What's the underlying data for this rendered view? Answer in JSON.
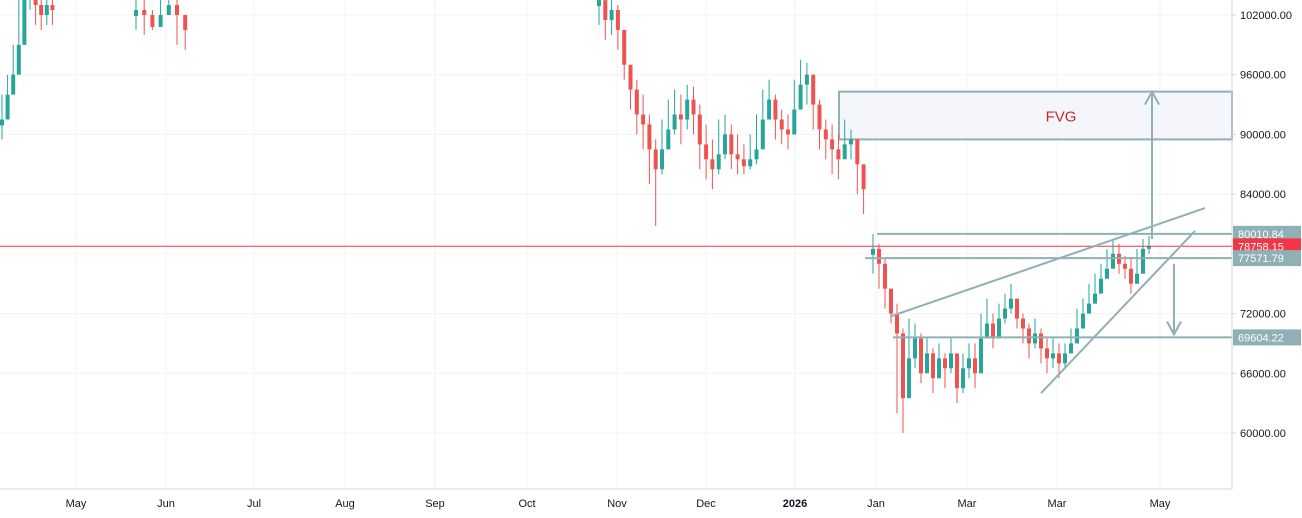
{
  "chart_data": {
    "type": "candlestick",
    "title": "",
    "ylim": [
      55000,
      104500
    ],
    "y_ticks": [
      60000,
      66000,
      72000,
      78000,
      84000,
      90000,
      96000,
      102000
    ],
    "y_tick_labels": [
      "60000.00",
      "66000.00",
      "72000.00",
      "78000.00",
      "84000.00",
      "90000.00",
      "96000.00",
      "102000.00"
    ],
    "x_labels": [
      "May",
      "Jun",
      "Jul",
      "Aug",
      "Sep",
      "Oct",
      "Nov",
      "Dec",
      "2026",
      "Jan",
      "Mar",
      "Mar",
      "May"
    ],
    "x_label_bold": [
      false,
      false,
      false,
      false,
      false,
      false,
      false,
      false,
      true,
      false,
      false,
      false,
      false
    ],
    "current_price": 78758.15,
    "current_price_label": "78758.15",
    "levels": [
      {
        "value": 80010.84,
        "label": "80010.84"
      },
      {
        "value": 77571.79,
        "label": "77571.79"
      },
      {
        "value": 69604.22,
        "label": "69604.22"
      }
    ],
    "fvg": {
      "label": "FVG",
      "top": 94300,
      "bottom": 89500
    },
    "colors": {
      "up": "#26a69a",
      "down": "#ef5350",
      "price_line": "#f23645",
      "drawing": "#8fb0b4",
      "fvg_fill": "#f5f5fc",
      "fvg_text": "#c62828",
      "grid": "#f2f3f5",
      "axis_text": "#131722",
      "level_badge": "#8fb0b4"
    },
    "segments": [
      {
        "name": "apr-jun",
        "points": [
          [
            91500,
            94000,
            89500
          ],
          [
            94000,
            96000,
            92000
          ],
          [
            96000,
            99000,
            94000
          ],
          [
            99000,
            103500,
            97500
          ],
          [
            103500,
            104500,
            101500
          ],
          [
            104000,
            105000,
            102500
          ],
          [
            103000,
            104200,
            101000
          ],
          [
            102000,
            104000,
            100500
          ],
          [
            103000,
            104500,
            101000
          ],
          [
            102500,
            104000,
            101000
          ]
        ]
      },
      {
        "name": "jun-gap",
        "points": [
          [
            102500,
            104000,
            100500
          ],
          [
            102000,
            103500,
            100000
          ],
          [
            100800,
            102500,
            100500
          ],
          [
            102000,
            104500,
            101500
          ],
          [
            103000,
            104500,
            102000
          ],
          [
            102000,
            104000,
            99000
          ],
          [
            100500,
            102000,
            98500
          ]
        ]
      },
      {
        "name": "oct-jan",
        "points": [
          [
            103500,
            104500,
            101000
          ],
          [
            101500,
            103000,
            99500
          ],
          [
            102500,
            104000,
            100000
          ],
          [
            100500,
            103000,
            98500
          ],
          [
            97000,
            100500,
            95500
          ],
          [
            94500,
            97000,
            92500
          ],
          [
            92000,
            95500,
            90000
          ],
          [
            91000,
            94000,
            88500
          ],
          [
            88500,
            92000,
            85000
          ],
          [
            86500,
            89500,
            80800
          ],
          [
            88500,
            91500,
            86000
          ],
          [
            90500,
            93500,
            88500
          ],
          [
            92000,
            94500,
            90000
          ],
          [
            91500,
            94000,
            89000
          ],
          [
            93500,
            95000,
            90500
          ],
          [
            92000,
            94800,
            90000
          ],
          [
            89000,
            93000,
            86500
          ],
          [
            87500,
            91000,
            85500
          ],
          [
            86500,
            89500,
            84500
          ],
          [
            88000,
            91500,
            86000
          ],
          [
            90000,
            92000,
            87500
          ],
          [
            88000,
            91000,
            86500
          ],
          [
            87500,
            90000,
            86000
          ],
          [
            86800,
            89000,
            86000
          ],
          [
            87500,
            90000,
            86500
          ],
          [
            88500,
            92000,
            87000
          ],
          [
            91500,
            94500,
            90000
          ],
          [
            93500,
            95500,
            91500
          ],
          [
            91500,
            94000,
            89500
          ],
          [
            90500,
            92500,
            89000
          ],
          [
            90000,
            92000,
            88500
          ],
          [
            92500,
            95500,
            91000
          ],
          [
            95000,
            97500,
            93500
          ],
          [
            96000,
            97200,
            93000
          ],
          [
            93000,
            96000,
            90500
          ],
          [
            90500,
            93500,
            88500
          ],
          [
            89500,
            91500,
            87500
          ],
          [
            88500,
            91000,
            86000
          ],
          [
            87500,
            90000,
            85500
          ],
          [
            89000,
            91500,
            88000
          ],
          [
            89500,
            90500,
            87500
          ],
          [
            87000,
            89500,
            84000
          ],
          [
            84500,
            86000,
            82000
          ]
        ]
      },
      {
        "name": "jan-may",
        "points": [
          [
            78500,
            80000,
            76000
          ],
          [
            77000,
            79000,
            74500
          ],
          [
            74500,
            77500,
            72500
          ],
          [
            72000,
            74500,
            71000
          ],
          [
            70000,
            73000,
            62000
          ],
          [
            63500,
            70500,
            60000
          ],
          [
            67500,
            71500,
            65000
          ],
          [
            69500,
            71000,
            66500
          ],
          [
            66000,
            70000,
            65000
          ],
          [
            68000,
            69500,
            66500
          ],
          [
            65500,
            68500,
            64000
          ],
          [
            67500,
            69000,
            65500
          ],
          [
            66500,
            68000,
            64500
          ],
          [
            68000,
            69500,
            66000
          ],
          [
            64500,
            67500,
            63000
          ],
          [
            66500,
            68000,
            64000
          ],
          [
            67500,
            69000,
            65500
          ],
          [
            66000,
            69000,
            64500
          ],
          [
            69500,
            72000,
            68000
          ],
          [
            71000,
            73500,
            69500
          ],
          [
            69500,
            72000,
            68500
          ],
          [
            71500,
            73000,
            70000
          ],
          [
            72500,
            74000,
            71000
          ],
          [
            73500,
            75000,
            72000
          ],
          [
            71500,
            73000,
            70500
          ],
          [
            70500,
            72000,
            69000
          ],
          [
            69000,
            71000,
            67500
          ],
          [
            70000,
            71500,
            68500
          ],
          [
            68500,
            70500,
            67000
          ],
          [
            67500,
            69500,
            66000
          ],
          [
            68000,
            69500,
            66500
          ],
          [
            67000,
            69000,
            65500
          ],
          [
            68000,
            69000,
            66500
          ],
          [
            69000,
            70500,
            68000
          ],
          [
            70500,
            72500,
            69500
          ],
          [
            72000,
            73500,
            71000
          ],
          [
            73000,
            75000,
            72000
          ],
          [
            74000,
            76000,
            73000
          ],
          [
            75500,
            77000,
            74500
          ],
          [
            76500,
            78500,
            75500
          ],
          [
            78000,
            79500,
            77000
          ],
          [
            77000,
            79000,
            76000
          ],
          [
            76500,
            77800,
            75500
          ],
          [
            75000,
            77500,
            74000
          ],
          [
            76000,
            78500,
            75000
          ],
          [
            78500,
            79500,
            77000
          ],
          [
            78758,
            79800,
            78000
          ]
        ]
      }
    ]
  }
}
